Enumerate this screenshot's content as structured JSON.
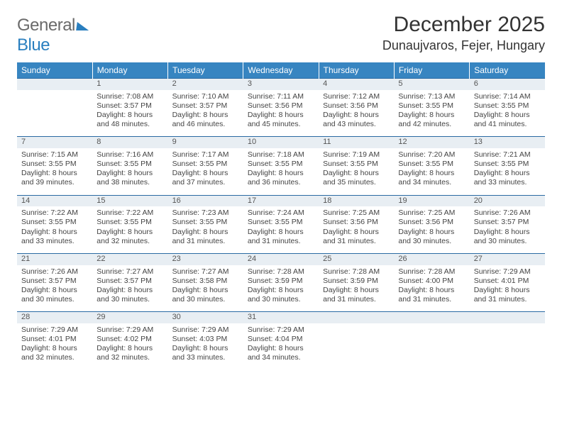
{
  "logo": {
    "word1": "General",
    "word2": "Blue"
  },
  "title": "December 2025",
  "location": "Dunaujvaros, Fejer, Hungary",
  "colors": {
    "header_bg": "#3785c1",
    "header_text": "#ffffff",
    "daynum_bg": "#e8eef3",
    "daynum_border": "#2a6aa3",
    "body_text": "#444444",
    "logo_gray": "#6a6a6a",
    "logo_blue": "#2a7fbf"
  },
  "weekdays": [
    "Sunday",
    "Monday",
    "Tuesday",
    "Wednesday",
    "Thursday",
    "Friday",
    "Saturday"
  ],
  "grid": [
    [
      {
        "n": "",
        "lines": [
          "",
          "",
          "",
          ""
        ]
      },
      {
        "n": "1",
        "lines": [
          "Sunrise: 7:08 AM",
          "Sunset: 3:57 PM",
          "Daylight: 8 hours",
          "and 48 minutes."
        ]
      },
      {
        "n": "2",
        "lines": [
          "Sunrise: 7:10 AM",
          "Sunset: 3:57 PM",
          "Daylight: 8 hours",
          "and 46 minutes."
        ]
      },
      {
        "n": "3",
        "lines": [
          "Sunrise: 7:11 AM",
          "Sunset: 3:56 PM",
          "Daylight: 8 hours",
          "and 45 minutes."
        ]
      },
      {
        "n": "4",
        "lines": [
          "Sunrise: 7:12 AM",
          "Sunset: 3:56 PM",
          "Daylight: 8 hours",
          "and 43 minutes."
        ]
      },
      {
        "n": "5",
        "lines": [
          "Sunrise: 7:13 AM",
          "Sunset: 3:55 PM",
          "Daylight: 8 hours",
          "and 42 minutes."
        ]
      },
      {
        "n": "6",
        "lines": [
          "Sunrise: 7:14 AM",
          "Sunset: 3:55 PM",
          "Daylight: 8 hours",
          "and 41 minutes."
        ]
      }
    ],
    [
      {
        "n": "7",
        "lines": [
          "Sunrise: 7:15 AM",
          "Sunset: 3:55 PM",
          "Daylight: 8 hours",
          "and 39 minutes."
        ]
      },
      {
        "n": "8",
        "lines": [
          "Sunrise: 7:16 AM",
          "Sunset: 3:55 PM",
          "Daylight: 8 hours",
          "and 38 minutes."
        ]
      },
      {
        "n": "9",
        "lines": [
          "Sunrise: 7:17 AM",
          "Sunset: 3:55 PM",
          "Daylight: 8 hours",
          "and 37 minutes."
        ]
      },
      {
        "n": "10",
        "lines": [
          "Sunrise: 7:18 AM",
          "Sunset: 3:55 PM",
          "Daylight: 8 hours",
          "and 36 minutes."
        ]
      },
      {
        "n": "11",
        "lines": [
          "Sunrise: 7:19 AM",
          "Sunset: 3:55 PM",
          "Daylight: 8 hours",
          "and 35 minutes."
        ]
      },
      {
        "n": "12",
        "lines": [
          "Sunrise: 7:20 AM",
          "Sunset: 3:55 PM",
          "Daylight: 8 hours",
          "and 34 minutes."
        ]
      },
      {
        "n": "13",
        "lines": [
          "Sunrise: 7:21 AM",
          "Sunset: 3:55 PM",
          "Daylight: 8 hours",
          "and 33 minutes."
        ]
      }
    ],
    [
      {
        "n": "14",
        "lines": [
          "Sunrise: 7:22 AM",
          "Sunset: 3:55 PM",
          "Daylight: 8 hours",
          "and 33 minutes."
        ]
      },
      {
        "n": "15",
        "lines": [
          "Sunrise: 7:22 AM",
          "Sunset: 3:55 PM",
          "Daylight: 8 hours",
          "and 32 minutes."
        ]
      },
      {
        "n": "16",
        "lines": [
          "Sunrise: 7:23 AM",
          "Sunset: 3:55 PM",
          "Daylight: 8 hours",
          "and 31 minutes."
        ]
      },
      {
        "n": "17",
        "lines": [
          "Sunrise: 7:24 AM",
          "Sunset: 3:55 PM",
          "Daylight: 8 hours",
          "and 31 minutes."
        ]
      },
      {
        "n": "18",
        "lines": [
          "Sunrise: 7:25 AM",
          "Sunset: 3:56 PM",
          "Daylight: 8 hours",
          "and 31 minutes."
        ]
      },
      {
        "n": "19",
        "lines": [
          "Sunrise: 7:25 AM",
          "Sunset: 3:56 PM",
          "Daylight: 8 hours",
          "and 30 minutes."
        ]
      },
      {
        "n": "20",
        "lines": [
          "Sunrise: 7:26 AM",
          "Sunset: 3:57 PM",
          "Daylight: 8 hours",
          "and 30 minutes."
        ]
      }
    ],
    [
      {
        "n": "21",
        "lines": [
          "Sunrise: 7:26 AM",
          "Sunset: 3:57 PM",
          "Daylight: 8 hours",
          "and 30 minutes."
        ]
      },
      {
        "n": "22",
        "lines": [
          "Sunrise: 7:27 AM",
          "Sunset: 3:57 PM",
          "Daylight: 8 hours",
          "and 30 minutes."
        ]
      },
      {
        "n": "23",
        "lines": [
          "Sunrise: 7:27 AM",
          "Sunset: 3:58 PM",
          "Daylight: 8 hours",
          "and 30 minutes."
        ]
      },
      {
        "n": "24",
        "lines": [
          "Sunrise: 7:28 AM",
          "Sunset: 3:59 PM",
          "Daylight: 8 hours",
          "and 30 minutes."
        ]
      },
      {
        "n": "25",
        "lines": [
          "Sunrise: 7:28 AM",
          "Sunset: 3:59 PM",
          "Daylight: 8 hours",
          "and 31 minutes."
        ]
      },
      {
        "n": "26",
        "lines": [
          "Sunrise: 7:28 AM",
          "Sunset: 4:00 PM",
          "Daylight: 8 hours",
          "and 31 minutes."
        ]
      },
      {
        "n": "27",
        "lines": [
          "Sunrise: 7:29 AM",
          "Sunset: 4:01 PM",
          "Daylight: 8 hours",
          "and 31 minutes."
        ]
      }
    ],
    [
      {
        "n": "28",
        "lines": [
          "Sunrise: 7:29 AM",
          "Sunset: 4:01 PM",
          "Daylight: 8 hours",
          "and 32 minutes."
        ]
      },
      {
        "n": "29",
        "lines": [
          "Sunrise: 7:29 AM",
          "Sunset: 4:02 PM",
          "Daylight: 8 hours",
          "and 32 minutes."
        ]
      },
      {
        "n": "30",
        "lines": [
          "Sunrise: 7:29 AM",
          "Sunset: 4:03 PM",
          "Daylight: 8 hours",
          "and 33 minutes."
        ]
      },
      {
        "n": "31",
        "lines": [
          "Sunrise: 7:29 AM",
          "Sunset: 4:04 PM",
          "Daylight: 8 hours",
          "and 34 minutes."
        ]
      },
      {
        "n": "",
        "lines": [
          "",
          "",
          "",
          ""
        ]
      },
      {
        "n": "",
        "lines": [
          "",
          "",
          "",
          ""
        ]
      },
      {
        "n": "",
        "lines": [
          "",
          "",
          "",
          ""
        ]
      }
    ]
  ]
}
